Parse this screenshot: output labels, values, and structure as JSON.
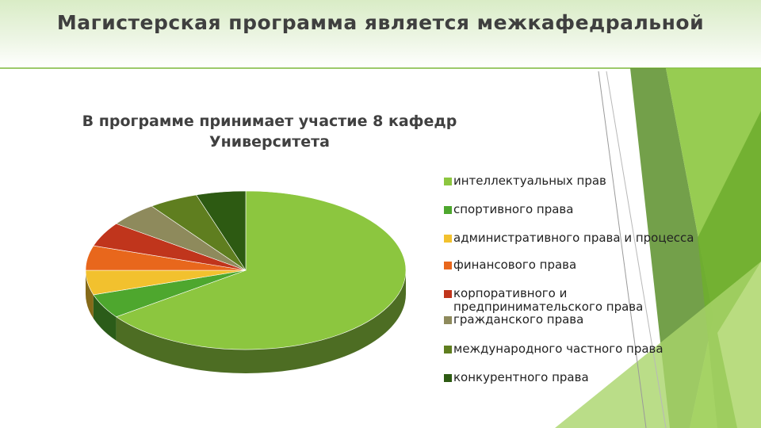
{
  "slide": {
    "title": "Магистерская программа является межкафедральной"
  },
  "chart_data": {
    "type": "pie",
    "title_lines": [
      "В программе принимает участие 8 кафедр",
      "Университета"
    ],
    "categories": [
      "интеллектуальных прав",
      "спортивного права",
      "административного права и процесса",
      "финансового права",
      "корпоративного и предпринимательского права",
      "гражданского права",
      "международного частного права",
      "конкурентного права"
    ],
    "values": [
      65,
      5,
      5,
      5,
      5,
      5,
      5,
      5
    ],
    "colors": [
      "#8CC63F",
      "#4EA72E",
      "#F2C12E",
      "#E8671C",
      "#C0351C",
      "#8E8A5C",
      "#5F7E1F",
      "#2D5A12"
    ],
    "legend_position": "right",
    "style": "3d"
  }
}
